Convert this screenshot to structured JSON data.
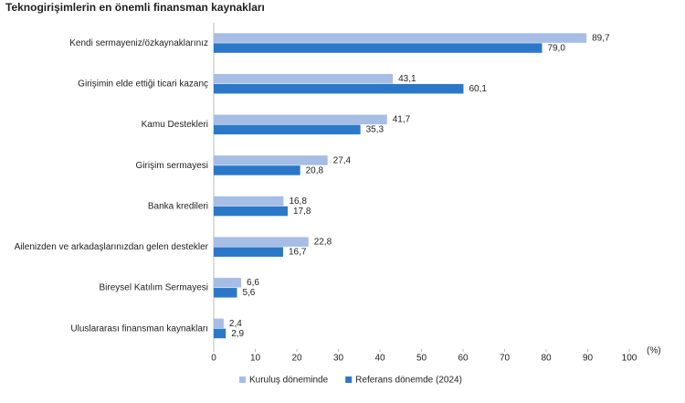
{
  "chart_data": {
    "type": "barh",
    "title": "Teknogirişimlerin en önemli finansman kaynakları",
    "x_label": "(%)",
    "categories": [
      "Kendi sermayeniz/özkaynaklarınız",
      "Girişimin elde ettiği ticari kazanç",
      "Kamu Destekleri",
      "Girişim sermayesi",
      "Banka kredileri",
      "Ailenizden ve arkadaşlarınızdan gelen destekler",
      "Bireysel Katılım Sermayesi",
      "Uluslararası finansman kaynakları"
    ],
    "series": [
      {
        "name": "Kuruluş döneminde",
        "color": "#a6bde6",
        "values": [
          89.7,
          43.1,
          41.7,
          27.4,
          16.8,
          22.8,
          6.6,
          2.4
        ],
        "value_labels": [
          "89,7",
          "43,1",
          "41,7",
          "27,4",
          "16,8",
          "22,8",
          "6,6",
          "2,4"
        ]
      },
      {
        "name": "Referans dönemde (2024)",
        "color": "#2b78c8",
        "values": [
          79.0,
          60.1,
          35.3,
          20.8,
          17.8,
          16.7,
          5.6,
          2.9
        ],
        "value_labels": [
          "79,0",
          "60,1",
          "35,3",
          "20,8",
          "17,8",
          "16,7",
          "5,6",
          "2,9"
        ]
      }
    ],
    "xlim": [
      0,
      100
    ],
    "xticks": [
      0,
      10,
      20,
      30,
      40,
      50,
      60,
      70,
      80,
      90,
      100
    ]
  }
}
